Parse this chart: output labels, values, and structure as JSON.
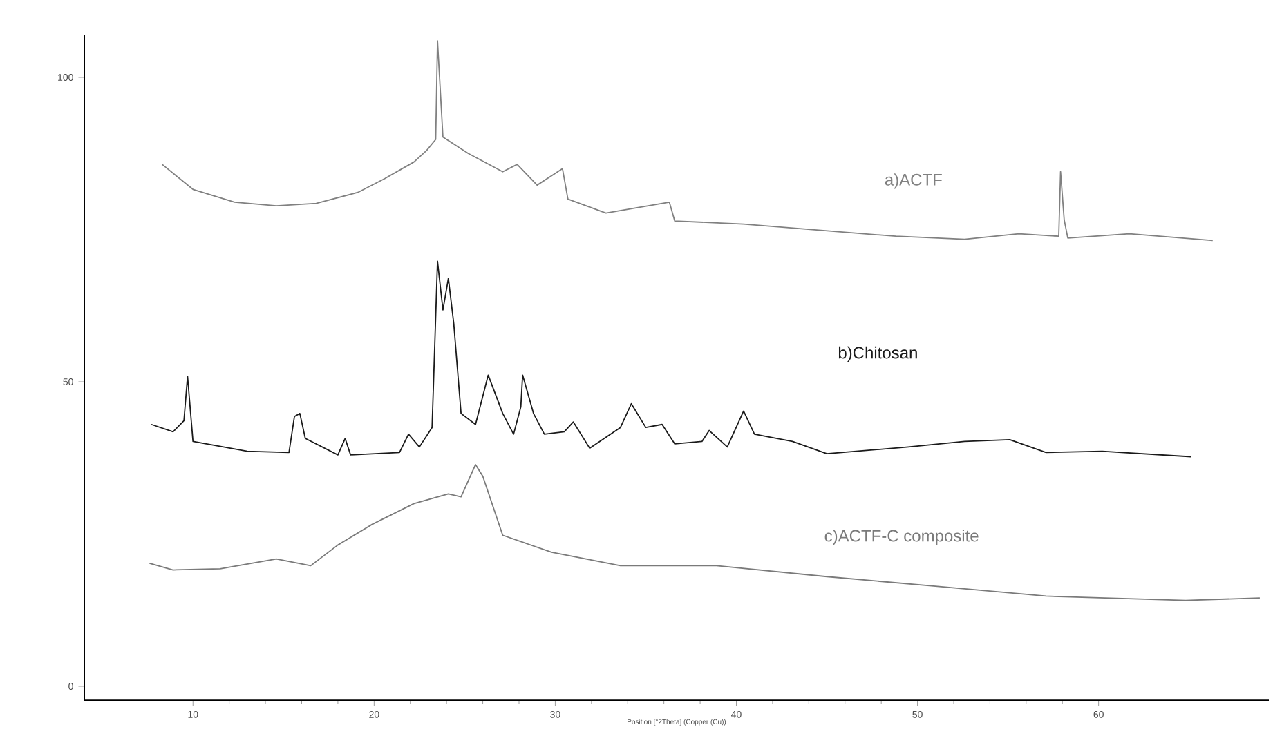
{
  "chart_data": {
    "type": "line",
    "xlabel": "Position [°2Theta] (Copper (Cu))",
    "xlim": [
      4,
      69.4
    ],
    "ylim": [
      -2.3,
      107
    ],
    "xticks": [
      10,
      20,
      30,
      40,
      50,
      60
    ],
    "yticks": [
      0,
      50,
      100
    ],
    "grid": false,
    "legend": false,
    "marker": "none",
    "line_style": "solid",
    "series": [
      {
        "name": "a)ACTF",
        "color": "#808080",
        "x": [
          8.3,
          10,
          12.3,
          14.6,
          16.8,
          19.1,
          20.6,
          22.2,
          22.9,
          23.4,
          23.5,
          23.8,
          25.2,
          27.1,
          27.9,
          29,
          30.4,
          30.7,
          32.8,
          36.3,
          36.6,
          40.4,
          48.8,
          52.6,
          55.6,
          57.8,
          57.9,
          58.1,
          58.3,
          61.7,
          66.3
        ],
        "values": [
          85.7,
          81.6,
          79.5,
          78.9,
          79.3,
          81.1,
          83.4,
          86.1,
          88,
          89.8,
          106,
          90.2,
          87.5,
          84.5,
          85.7,
          82.3,
          85,
          80,
          77.7,
          79.5,
          76.4,
          75.9,
          73.9,
          73.4,
          74.3,
          73.9,
          84.5,
          76.6,
          73.6,
          74.3,
          73.2
        ]
      },
      {
        "name": "b)Chitosan",
        "color": "#1a1a1a",
        "x": [
          7.7,
          8.9,
          9.5,
          9.7,
          10,
          13,
          15.3,
          15.6,
          15.9,
          16.2,
          18,
          18.4,
          18.7,
          21.4,
          21.9,
          22.5,
          23.2,
          23.5,
          23.8,
          24.1,
          24.4,
          24.8,
          25.6,
          26.3,
          27.1,
          27.7,
          28.1,
          28.2,
          28.8,
          29.4,
          30.5,
          31,
          31.9,
          33.6,
          34.2,
          35,
          35.9,
          36.6,
          38.1,
          38.5,
          39.5,
          40.4,
          41,
          43.1,
          45,
          49.5,
          52.6,
          55.1,
          57.1,
          60.2,
          65.1
        ],
        "values": [
          43,
          41.8,
          43.6,
          50.9,
          40.2,
          38.6,
          38.4,
          44.3,
          44.8,
          40.7,
          38,
          40.7,
          38,
          38.4,
          41.4,
          39.3,
          42.5,
          69.8,
          61.8,
          67,
          59.5,
          44.8,
          43,
          51.1,
          44.8,
          41.4,
          45.9,
          51.1,
          44.8,
          41.4,
          41.8,
          43.4,
          39.1,
          42.5,
          46.4,
          42.5,
          43,
          39.8,
          40.2,
          42,
          39.3,
          45.2,
          41.4,
          40.2,
          38.2,
          39.3,
          40.2,
          40.5,
          38.4,
          38.6,
          37.7
        ]
      },
      {
        "name": "c)ACTF-C composite",
        "color": "#7a7a7a",
        "x": [
          7.6,
          8.9,
          11.5,
          14.6,
          16.5,
          18,
          19.9,
          22.2,
          24.1,
          24.8,
          25.6,
          26,
          27.1,
          29.8,
          33.6,
          38.9,
          45,
          51.1,
          57.1,
          64.8,
          68.9
        ],
        "values": [
          20.2,
          19.1,
          19.3,
          20.9,
          19.8,
          23.2,
          26.6,
          30,
          31.6,
          31.1,
          36.4,
          34.5,
          24.8,
          22,
          19.8,
          19.8,
          18,
          16.4,
          14.8,
          14.1,
          14.5
        ]
      }
    ]
  }
}
